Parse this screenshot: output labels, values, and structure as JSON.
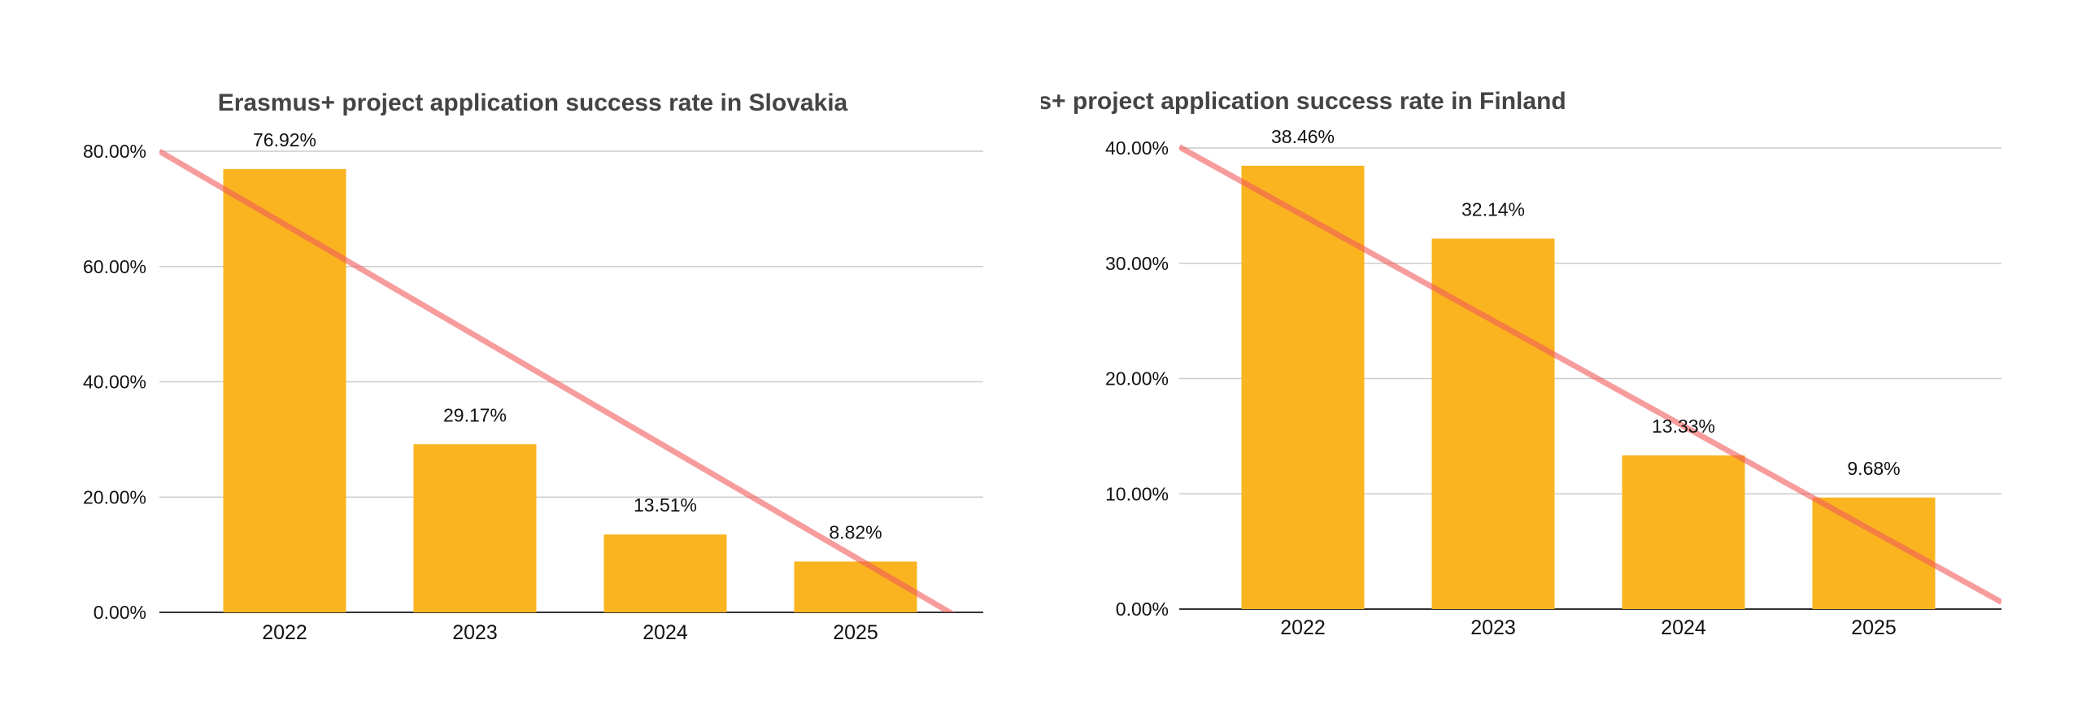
{
  "colors": {
    "bar": "#F9B420",
    "trend": "#F25A5A",
    "grid": "#CCCCCC",
    "axis": "#333333"
  },
  "chart_data": [
    {
      "type": "bar",
      "title": "Erasmus+ project application success rate in Slovakia",
      "categories": [
        "2022",
        "2023",
        "2024",
        "2025"
      ],
      "values": [
        76.92,
        29.17,
        13.51,
        8.82
      ],
      "data_labels": [
        "76.92%",
        "29.17%",
        "13.51%",
        "8.82%"
      ],
      "yticks": [
        "0.00%",
        "20.00%",
        "40.00%",
        "60.00%",
        "80.00%"
      ],
      "ylim": [
        0,
        80
      ],
      "trendline": {
        "start_value": 80,
        "end_value": -3.4
      },
      "grid": true,
      "legend": "none"
    },
    {
      "type": "bar",
      "title": "Erasmus+ project application success rate in Finland",
      "categories": [
        "2022",
        "2023",
        "2024",
        "2025"
      ],
      "values": [
        38.46,
        32.14,
        13.33,
        9.68
      ],
      "data_labels": [
        "38.46%",
        "32.14%",
        "13.33%",
        "9.68%"
      ],
      "yticks": [
        "0.00%",
        "10.00%",
        "20.00%",
        "30.00%",
        "40.00%"
      ],
      "ylim": [
        0,
        40
      ],
      "trendline": {
        "start_value": 40.1,
        "end_value": 0.6
      },
      "grid": true,
      "legend": "none"
    }
  ]
}
